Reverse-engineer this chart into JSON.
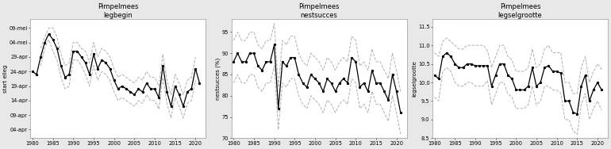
{
  "years": [
    1980,
    1981,
    1982,
    1983,
    1984,
    1985,
    1986,
    1987,
    1988,
    1989,
    1990,
    1991,
    1992,
    1993,
    1994,
    1995,
    1996,
    1997,
    1998,
    1999,
    2000,
    2001,
    2002,
    2003,
    2004,
    2005,
    2006,
    2007,
    2008,
    2009,
    2010,
    2011,
    2012,
    2013,
    2014,
    2015,
    2016,
    2017,
    2018,
    2019,
    2020,
    2021
  ],
  "legbegin_main": [
    114,
    113,
    119,
    124,
    127,
    125,
    122,
    116,
    112,
    113,
    121,
    121,
    119,
    117,
    113,
    120,
    115,
    118,
    117,
    115,
    111,
    108,
    109,
    108,
    107,
    106,
    108,
    107,
    110,
    108,
    108,
    105,
    116,
    107,
    102,
    109,
    106,
    102,
    107,
    108,
    115,
    110
  ],
  "legbegin_upper": [
    null,
    null,
    122,
    126,
    129,
    129,
    126,
    120,
    116,
    117,
    124,
    124,
    122,
    121,
    117,
    124,
    119,
    122,
    121,
    119,
    115,
    112,
    113,
    112,
    111,
    110,
    112,
    111,
    114,
    112,
    112,
    109,
    120,
    111,
    106,
    113,
    110,
    106,
    111,
    112,
    119,
    null
  ],
  "legbegin_lower": [
    null,
    null,
    116,
    122,
    125,
    121,
    118,
    112,
    108,
    109,
    118,
    118,
    116,
    113,
    109,
    116,
    111,
    114,
    113,
    111,
    107,
    104,
    105,
    104,
    103,
    102,
    104,
    103,
    106,
    104,
    104,
    101,
    112,
    103,
    98,
    105,
    102,
    98,
    103,
    104,
    111,
    null
  ],
  "nestsucces_main": [
    88,
    90,
    88,
    88,
    90,
    90,
    87,
    86,
    88,
    88,
    92,
    77,
    88,
    87,
    89,
    89,
    85,
    83,
    82,
    85,
    84,
    83,
    81,
    84,
    83,
    81,
    83,
    84,
    83,
    89,
    88,
    82,
    83,
    81,
    86,
    83,
    83,
    81,
    79,
    85,
    81,
    76
  ],
  "nestsucces_upper": [
    93,
    95,
    93,
    93,
    95,
    95,
    92,
    91,
    93,
    93,
    97,
    82,
    93,
    92,
    94,
    94,
    90,
    88,
    87,
    90,
    89,
    88,
    86,
    89,
    88,
    86,
    88,
    89,
    88,
    94,
    93,
    87,
    88,
    86,
    91,
    88,
    88,
    86,
    84,
    90,
    86,
    81
  ],
  "nestsucces_lower": [
    83,
    85,
    83,
    83,
    85,
    85,
    82,
    81,
    83,
    83,
    87,
    72,
    83,
    82,
    84,
    84,
    80,
    78,
    77,
    80,
    79,
    78,
    76,
    79,
    78,
    76,
    78,
    79,
    78,
    84,
    83,
    77,
    78,
    76,
    81,
    78,
    78,
    76,
    74,
    80,
    76,
    71
  ],
  "legsel_main": [
    10.2,
    10.1,
    10.7,
    10.8,
    10.7,
    10.5,
    10.4,
    10.4,
    10.5,
    10.5,
    10.45,
    10.45,
    10.45,
    10.45,
    9.9,
    10.2,
    10.5,
    10.5,
    10.2,
    10.1,
    9.8,
    9.8,
    9.8,
    9.9,
    10.4,
    9.9,
    10.0,
    10.4,
    10.45,
    10.3,
    10.3,
    10.25,
    9.5,
    9.5,
    9.2,
    9.15,
    9.9,
    10.2,
    9.5,
    9.8,
    10.0,
    9.8
  ],
  "legsel_upper": [
    10.8,
    10.7,
    11.1,
    11.2,
    11.1,
    11.0,
    10.9,
    10.9,
    11.0,
    11.0,
    11.0,
    11.0,
    11.0,
    10.85,
    10.4,
    10.7,
    11.0,
    11.0,
    10.7,
    10.6,
    10.3,
    10.3,
    10.3,
    10.4,
    10.9,
    10.4,
    10.5,
    10.9,
    11.0,
    10.8,
    10.8,
    10.8,
    10.0,
    10.0,
    9.7,
    9.7,
    10.4,
    10.7,
    10.0,
    10.3,
    10.5,
    10.35
  ],
  "legsel_lower": [
    9.6,
    9.5,
    10.3,
    10.4,
    10.3,
    10.0,
    9.9,
    9.9,
    10.0,
    10.0,
    9.9,
    9.9,
    9.9,
    10.05,
    9.4,
    9.7,
    10.0,
    10.0,
    9.7,
    9.6,
    9.3,
    9.3,
    9.3,
    9.4,
    9.9,
    9.4,
    9.5,
    9.9,
    9.9,
    9.8,
    9.8,
    9.7,
    9.0,
    9.0,
    8.7,
    8.6,
    9.4,
    9.7,
    9.0,
    9.3,
    9.5,
    9.25
  ],
  "legbegin_yticks_labels": [
    "04-apr",
    "09-apr",
    "14-apr",
    "19-apr",
    "24-apr",
    "29-apr",
    "04-mei",
    "09-mei"
  ],
  "legbegin_yticks_vals": [
    94,
    99,
    104,
    109,
    114,
    119,
    124,
    129
  ],
  "legbegin_ylim": [
    91,
    132
  ],
  "legbegin_ylabel": "start eileg",
  "nestsucces_ylim": [
    70,
    98
  ],
  "nestsucces_yticks": [
    70,
    75,
    80,
    85,
    90,
    95
  ],
  "nestsucces_ylabel": "nestsucces (%)",
  "legsel_ylim": [
    8.5,
    11.7
  ],
  "legsel_yticks": [
    8.5,
    9.0,
    9.5,
    10.0,
    10.5,
    11.0,
    11.5
  ],
  "legsel_ylabel": "legselgrootte",
  "title1": "Pimpelmees\nlegbegin",
  "title2": "Pimpelmees\nnestsucces",
  "title3": "Pimpelmees\nlegselgrootte",
  "xlim": [
    1979.5,
    2022.5
  ],
  "xticks": [
    1980,
    1985,
    1990,
    1995,
    2000,
    2005,
    2010,
    2015,
    2020
  ],
  "line_color": "#000000",
  "ci_color": "#b0b0b0",
  "bg_color": "#e8e8e8",
  "plot_bg": "#ffffff"
}
